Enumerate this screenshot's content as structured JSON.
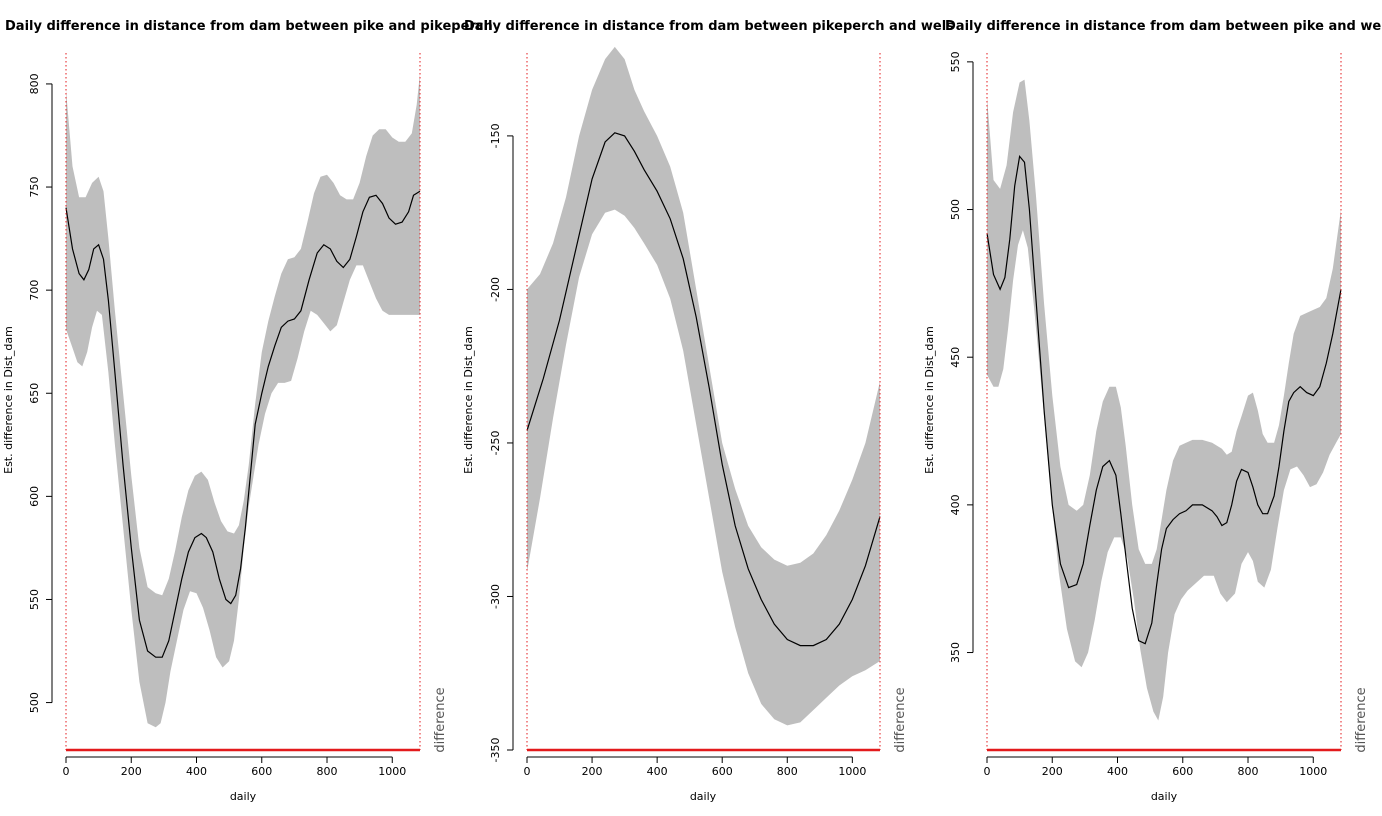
{
  "chart_data": [
    {
      "type": "line",
      "title": "Daily difference in distance from dam between pike and pikeperch",
      "xlabel": "daily",
      "ylabel": "Est. difference in Dist_dam",
      "side_label": "difference",
      "xlim": [
        0,
        1085
      ],
      "ylim": [
        477,
        815
      ],
      "x_ticks": [
        0,
        200,
        400,
        600,
        800,
        1000
      ],
      "y_ticks": [
        500,
        550,
        600,
        650,
        700,
        750,
        800
      ],
      "vlines": [
        0,
        1085
      ],
      "series": [
        {
          "role": "estimate",
          "x": [
            0,
            20,
            40,
            55,
            70,
            85,
            100,
            115,
            130,
            150,
            175,
            200,
            225,
            250,
            275,
            295,
            315,
            335,
            355,
            375,
            395,
            415,
            430,
            450,
            470,
            490,
            505,
            520,
            535,
            550,
            565,
            580,
            600,
            620,
            640,
            660,
            680,
            700,
            720,
            745,
            770,
            790,
            810,
            830,
            850,
            870,
            890,
            910,
            930,
            950,
            970,
            990,
            1010,
            1030,
            1050,
            1065,
            1085
          ],
          "values": [
            740,
            720,
            708,
            705,
            710,
            720,
            722,
            715,
            695,
            660,
            615,
            575,
            540,
            525,
            522,
            522,
            530,
            545,
            560,
            573,
            580,
            582,
            580,
            573,
            560,
            550,
            548,
            552,
            565,
            585,
            610,
            635,
            650,
            663,
            673,
            682,
            685,
            686,
            690,
            705,
            718,
            722,
            720,
            714,
            711,
            715,
            726,
            738,
            745,
            746,
            742,
            735,
            732,
            733,
            738,
            746,
            748
          ]
        },
        {
          "role": "ci_upper",
          "x": [
            0,
            20,
            40,
            60,
            80,
            100,
            115,
            130,
            150,
            175,
            200,
            225,
            250,
            275,
            295,
            315,
            335,
            355,
            375,
            395,
            415,
            435,
            455,
            475,
            495,
            515,
            530,
            545,
            560,
            580,
            600,
            620,
            640,
            660,
            680,
            700,
            720,
            740,
            760,
            780,
            800,
            820,
            840,
            860,
            880,
            900,
            920,
            940,
            960,
            980,
            1000,
            1020,
            1040,
            1060,
            1075,
            1085
          ],
          "values": [
            797,
            760,
            745,
            745,
            752,
            755,
            748,
            725,
            690,
            650,
            610,
            575,
            556,
            553,
            552,
            560,
            574,
            590,
            603,
            610,
            612,
            608,
            597,
            588,
            583,
            582,
            586,
            598,
            615,
            645,
            670,
            685,
            697,
            708,
            715,
            716,
            720,
            733,
            747,
            755,
            756,
            752,
            746,
            744,
            744,
            752,
            765,
            775,
            778,
            778,
            774,
            772,
            772,
            776,
            790,
            805
          ]
        },
        {
          "role": "ci_lower",
          "x": [
            0,
            20,
            35,
            50,
            65,
            80,
            95,
            110,
            130,
            150,
            175,
            200,
            225,
            250,
            275,
            290,
            305,
            320,
            340,
            360,
            380,
            400,
            420,
            440,
            460,
            480,
            500,
            515,
            530,
            545,
            560,
            575,
            590,
            610,
            630,
            650,
            670,
            690,
            710,
            730,
            750,
            770,
            790,
            810,
            830,
            850,
            870,
            890,
            910,
            930,
            950,
            970,
            990,
            1010,
            1030,
            1050,
            1070,
            1085
          ],
          "values": [
            681,
            672,
            665,
            663,
            670,
            682,
            690,
            688,
            660,
            625,
            585,
            545,
            510,
            490,
            488,
            490,
            500,
            515,
            530,
            545,
            554,
            553,
            546,
            535,
            522,
            517,
            520,
            530,
            550,
            575,
            595,
            610,
            625,
            640,
            650,
            655,
            655,
            656,
            667,
            680,
            690,
            688,
            684,
            680,
            683,
            694,
            705,
            712,
            712,
            704,
            696,
            690,
            688,
            688,
            688,
            688,
            688,
            688
          ]
        }
      ]
    },
    {
      "type": "line",
      "title": "Daily difference in distance from dam between pikeperch and wels",
      "xlabel": "daily",
      "ylabel": "Est. difference in Dist_dam",
      "side_label": "difference",
      "xlim": [
        0,
        1085
      ],
      "ylim": [
        -350,
        -123
      ],
      "x_ticks": [
        0,
        200,
        400,
        600,
        800,
        1000
      ],
      "y_ticks": [
        -150,
        -200,
        -250,
        -300,
        -350
      ],
      "vlines": [
        0,
        1085
      ],
      "series": [
        {
          "role": "estimate",
          "x": [
            0,
            50,
            100,
            150,
            200,
            240,
            270,
            300,
            330,
            360,
            400,
            440,
            480,
            520,
            560,
            600,
            640,
            680,
            720,
            760,
            800,
            840,
            880,
            920,
            960,
            1000,
            1040,
            1085
          ],
          "values": [
            -246,
            -229,
            -210,
            -187,
            -164,
            -152,
            -149,
            -150,
            -155,
            -161,
            -168,
            -177,
            -190,
            -209,
            -232,
            -257,
            -277,
            -291,
            -301,
            -309,
            -314,
            -316,
            -316,
            -314,
            -309,
            -301,
            -290,
            -274
          ]
        },
        {
          "role": "ci_upper",
          "x": [
            0,
            40,
            80,
            120,
            160,
            200,
            240,
            270,
            300,
            330,
            360,
            400,
            440,
            480,
            520,
            560,
            600,
            640,
            680,
            720,
            760,
            800,
            840,
            880,
            920,
            960,
            1000,
            1040,
            1085
          ],
          "values": [
            -200,
            -195,
            -185,
            -170,
            -150,
            -135,
            -125,
            -121,
            -125,
            -135,
            -142,
            -150,
            -160,
            -175,
            -200,
            -225,
            -250,
            -265,
            -277,
            -284,
            -288,
            -290,
            -289,
            -286,
            -280,
            -272,
            -262,
            -250,
            -230
          ]
        },
        {
          "role": "ci_lower",
          "x": [
            0,
            40,
            80,
            120,
            160,
            200,
            240,
            270,
            300,
            330,
            360,
            400,
            440,
            480,
            520,
            560,
            600,
            640,
            680,
            720,
            760,
            800,
            840,
            880,
            920,
            960,
            1000,
            1040,
            1085
          ],
          "values": [
            -292,
            -268,
            -242,
            -218,
            -196,
            -182,
            -175,
            -174,
            -176,
            -180,
            -185,
            -192,
            -203,
            -220,
            -244,
            -268,
            -292,
            -310,
            -325,
            -335,
            -340,
            -342,
            -341,
            -337,
            -333,
            -329,
            -326,
            -324,
            -321
          ]
        }
      ]
    },
    {
      "type": "line",
      "title": "Daily difference in distance from dam between pike and wels",
      "xlabel": "daily",
      "ylabel": "Est. difference in Dist_dam",
      "side_label": "difference",
      "xlim": [
        0,
        1085
      ],
      "ylim": [
        317,
        553
      ],
      "x_ticks": [
        0,
        200,
        400,
        600,
        800,
        1000
      ],
      "y_ticks": [
        350,
        400,
        450,
        500,
        550
      ],
      "vlines": [
        0,
        1085
      ],
      "series": [
        {
          "role": "estimate",
          "x": [
            0,
            20,
            40,
            55,
            70,
            85,
            100,
            115,
            130,
            150,
            175,
            200,
            225,
            250,
            275,
            295,
            315,
            335,
            355,
            375,
            395,
            410,
            425,
            445,
            465,
            485,
            505,
            520,
            535,
            550,
            570,
            590,
            610,
            630,
            660,
            690,
            705,
            720,
            735,
            750,
            765,
            780,
            800,
            815,
            830,
            845,
            860,
            880,
            895,
            910,
            925,
            940,
            960,
            980,
            1000,
            1020,
            1040,
            1060,
            1085
          ],
          "values": [
            492,
            478,
            473,
            477,
            490,
            508,
            518,
            516,
            500,
            470,
            432,
            400,
            380,
            372,
            373,
            380,
            393,
            405,
            413,
            415,
            410,
            397,
            383,
            365,
            354,
            353,
            360,
            373,
            385,
            392,
            395,
            397,
            398,
            400,
            400,
            398,
            396,
            393,
            394,
            400,
            408,
            412,
            411,
            406,
            400,
            397,
            397,
            403,
            413,
            425,
            435,
            438,
            440,
            438,
            437,
            440,
            448,
            458,
            473
          ]
        },
        {
          "role": "ci_upper",
          "x": [
            0,
            20,
            40,
            60,
            80,
            100,
            115,
            130,
            150,
            175,
            200,
            225,
            250,
            275,
            295,
            315,
            335,
            355,
            375,
            395,
            410,
            425,
            445,
            465,
            485,
            505,
            520,
            535,
            550,
            570,
            590,
            610,
            630,
            660,
            690,
            705,
            720,
            735,
            750,
            765,
            780,
            800,
            815,
            830,
            845,
            860,
            880,
            895,
            910,
            925,
            940,
            960,
            980,
            1000,
            1020,
            1040,
            1060,
            1085
          ],
          "values": [
            538,
            510,
            507,
            515,
            533,
            543,
            544,
            530,
            505,
            468,
            437,
            413,
            400,
            398,
            400,
            410,
            425,
            435,
            440,
            440,
            433,
            420,
            400,
            385,
            380,
            380,
            385,
            395,
            405,
            415,
            420,
            421,
            422,
            422,
            421,
            420,
            419,
            417,
            418,
            425,
            430,
            437,
            438,
            432,
            424,
            421,
            421,
            427,
            437,
            448,
            458,
            464,
            465,
            466,
            467,
            470,
            480,
            500
          ]
        },
        {
          "role": "ci_lower",
          "x": [
            0,
            20,
            35,
            50,
            65,
            80,
            95,
            110,
            125,
            145,
            170,
            195,
            220,
            245,
            270,
            290,
            310,
            330,
            350,
            370,
            390,
            410,
            430,
            450,
            470,
            490,
            510,
            525,
            540,
            555,
            575,
            595,
            615,
            635,
            665,
            695,
            715,
            735,
            760,
            780,
            800,
            815,
            830,
            850,
            870,
            890,
            910,
            930,
            950,
            970,
            990,
            1010,
            1030,
            1050,
            1070,
            1085
          ],
          "values": [
            444,
            440,
            440,
            446,
            460,
            476,
            488,
            493,
            487,
            466,
            436,
            405,
            377,
            358,
            347,
            345,
            350,
            361,
            374,
            384,
            389,
            389,
            382,
            368,
            351,
            338,
            330,
            327,
            335,
            350,
            363,
            368,
            371,
            373,
            376,
            376,
            370,
            367,
            370,
            380,
            384,
            381,
            374,
            372,
            378,
            392,
            405,
            412,
            413,
            410,
            406,
            407,
            411,
            417,
            421,
            424
          ]
        }
      ]
    }
  ]
}
